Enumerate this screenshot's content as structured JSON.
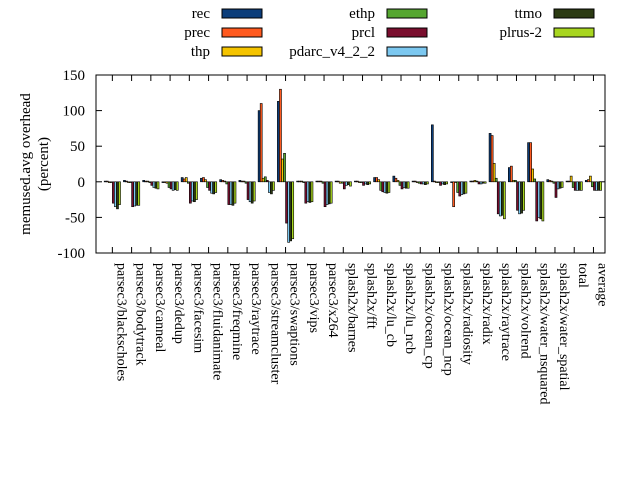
{
  "chart_data": {
    "type": "bar",
    "ylabel_lines": [
      "memused.avg overhead",
      "(percent)"
    ],
    "ylim": [
      -100,
      150
    ],
    "yticks": [
      -100,
      -50,
      0,
      50,
      100,
      150
    ],
    "legend_position": "top",
    "grid": false,
    "categories": [
      "parsec3/blackscholes",
      "parsec3/bodytrack",
      "parsec3/canneal",
      "parsec3/dedup",
      "parsec3/facesim",
      "parsec3/fluidanimate",
      "parsec3/freqmine",
      "parsec3/raytrace",
      "parsec3/streamcluster",
      "parsec3/swaptions",
      "parsec3/vips",
      "parsec3/x264",
      "splash2x/barnes",
      "splash2x/fft",
      "splash2x/lu_cb",
      "splash2x/lu_ncb",
      "splash2x/ocean_cp",
      "splash2x/ocean_ncp",
      "splash2x/radiosity",
      "splash2x/radix",
      "splash2x/raytrace",
      "splash2x/volrend",
      "splash2x/water_nsquared",
      "splash2x/water_spatial",
      "total",
      "average"
    ],
    "series": [
      {
        "name": "rec",
        "color": "#0b3d7a",
        "values": [
          1,
          2,
          2,
          0,
          6,
          5,
          3,
          2,
          100,
          113,
          1,
          1,
          1,
          1,
          6,
          8,
          1,
          80,
          0,
          1,
          68,
          20,
          55,
          3,
          1,
          2
        ]
      },
      {
        "name": "prec",
        "color": "#ff5a1f",
        "values": [
          1,
          1,
          1,
          0,
          4,
          6,
          2,
          1,
          110,
          130,
          1,
          1,
          1,
          1,
          6,
          5,
          1,
          1,
          -35,
          1,
          65,
          22,
          55,
          2,
          1,
          3
        ]
      },
      {
        "name": "thp",
        "color": "#f5c400",
        "values": [
          0,
          0,
          1,
          -2,
          6,
          3,
          1,
          1,
          5,
          32,
          1,
          1,
          -2,
          0,
          3,
          2,
          -1,
          0,
          0,
          2,
          26,
          2,
          18,
          1,
          8,
          8
        ]
      },
      {
        "name": "ethp",
        "color": "#55a630",
        "values": [
          0,
          0,
          0,
          -8,
          -2,
          -8,
          -3,
          -2,
          7,
          40,
          0,
          -2,
          -2,
          0,
          -12,
          -5,
          -2,
          0,
          -15,
          1,
          5,
          2,
          4,
          -2,
          -8,
          -7
        ]
      },
      {
        "name": "prcl",
        "color": "#7a0e2e",
        "values": [
          -30,
          -35,
          -5,
          -10,
          -30,
          -12,
          -32,
          -25,
          2,
          -58,
          -30,
          -35,
          -10,
          -5,
          -14,
          -10,
          -3,
          -5,
          -20,
          -3,
          -45,
          -40,
          -55,
          -22,
          -12,
          -12
        ]
      },
      {
        "name": "pdarc_v4_2_2",
        "color": "#7cc8f0",
        "values": [
          -35,
          -34,
          -8,
          -12,
          -27,
          -16,
          -32,
          -28,
          -15,
          -85,
          -28,
          -32,
          -5,
          -3,
          -15,
          -8,
          -3,
          -3,
          -18,
          -3,
          -48,
          -45,
          -50,
          -10,
          -12,
          -12
        ]
      },
      {
        "name": "ttmo",
        "color": "#2b3a12",
        "values": [
          -38,
          -33,
          -9,
          -11,
          -28,
          -17,
          -33,
          -30,
          -17,
          -83,
          -29,
          -31,
          -4,
          -4,
          -16,
          -9,
          -4,
          -4,
          -17,
          -2,
          -47,
          -44,
          -52,
          -9,
          -12,
          -12
        ]
      },
      {
        "name": "plrus-2",
        "color": "#a8d620",
        "values": [
          -32,
          -33,
          -10,
          -12,
          -25,
          -15,
          -30,
          -27,
          -12,
          -80,
          -28,
          -30,
          -6,
          -3,
          -15,
          -9,
          -3,
          -3,
          -16,
          -2,
          -52,
          -40,
          -55,
          -8,
          -12,
          -12
        ]
      }
    ]
  }
}
